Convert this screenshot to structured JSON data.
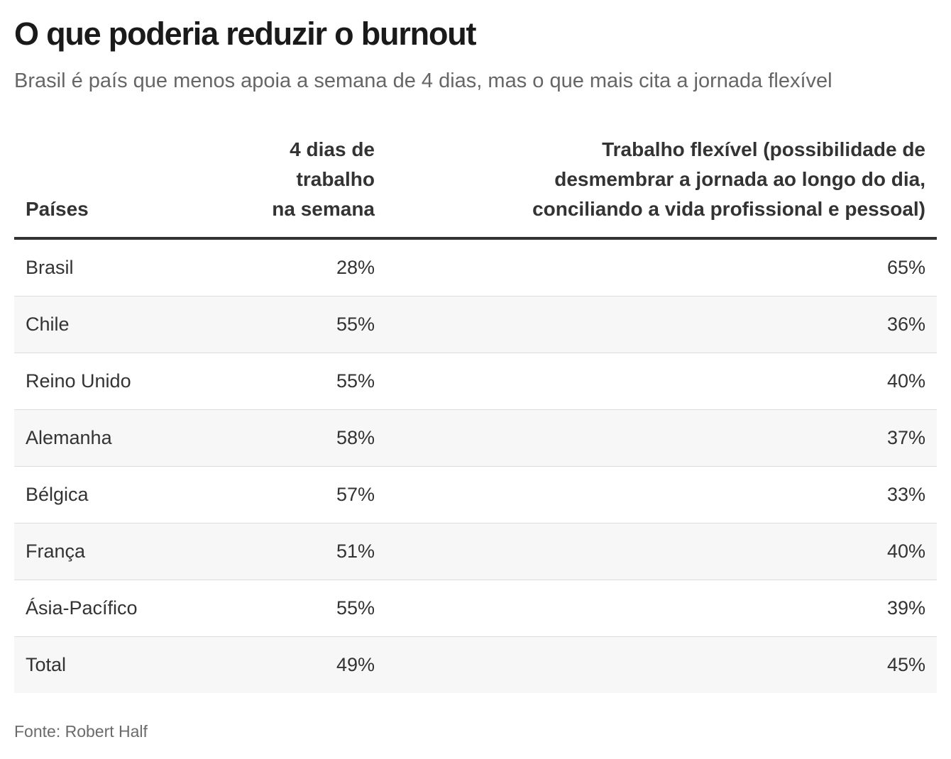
{
  "title": "O que poderia reduzir o burnout",
  "subtitle": "Brasil é país que menos apoia a semana de 4 dias, mas o que mais cita a jornada flexível",
  "source": "Fonte: Robert Half",
  "chart_data": {
    "type": "table",
    "columns": [
      "Países",
      "4 dias de trabalho na semana",
      "Trabalho flexível (possibilidade de desmembrar a jornada ao longo do dia, conciliando a vida profissional e pessoal)"
    ],
    "column_header_lines": [
      [
        "Países"
      ],
      [
        "4 dias de trabalho",
        "na semana"
      ],
      [
        "Trabalho flexível (possibilidade de",
        "desmembrar a jornada ao longo do dia,",
        "conciliando a vida profissional e pessoal)"
      ]
    ],
    "rows": [
      [
        "Brasil",
        "28%",
        "65%"
      ],
      [
        "Chile",
        "55%",
        "36%"
      ],
      [
        "Reino Unido",
        "55%",
        "40%"
      ],
      [
        "Alemanha",
        "58%",
        "37%"
      ],
      [
        "Bélgica",
        "57%",
        "33%"
      ],
      [
        "França",
        "51%",
        "40%"
      ],
      [
        "Ásia-Pacífico",
        "55%",
        "39%"
      ],
      [
        "Total",
        "49%",
        "45%"
      ]
    ]
  }
}
